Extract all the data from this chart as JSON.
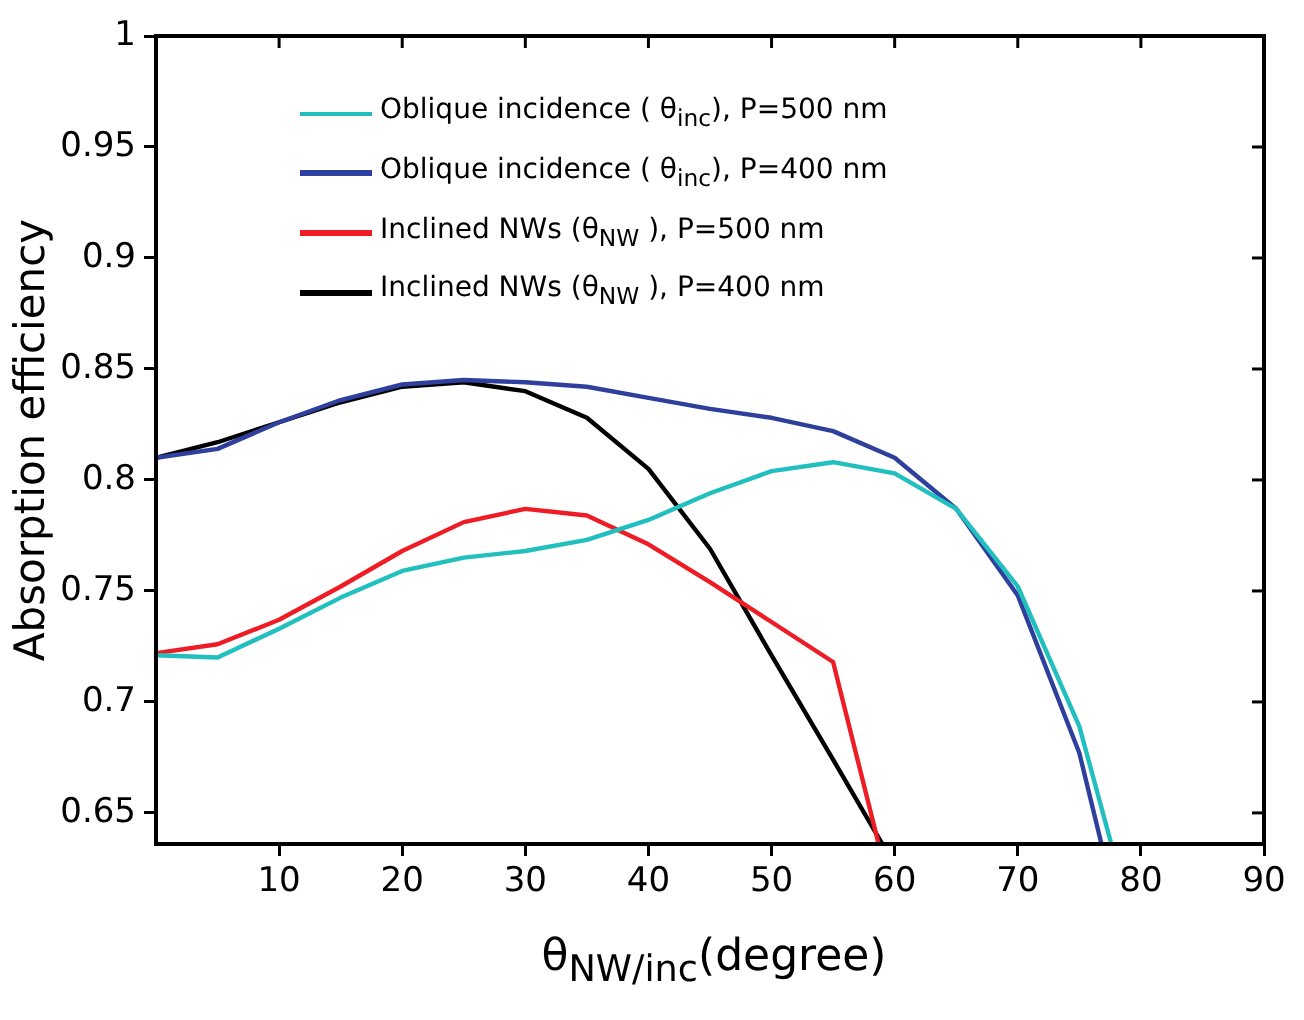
{
  "chart_data": {
    "type": "line",
    "xlabel": "θ$_{NW/inc}$(degree)",
    "ylabel": "Absorption efficiency",
    "xlim": [
      0,
      90
    ],
    "xticks": [
      10,
      20,
      30,
      40,
      50,
      60,
      70,
      80,
      90
    ],
    "ylim": [
      0.636,
      1
    ],
    "yticks": [
      0.65,
      0.7,
      0.75,
      0.8,
      0.85,
      0.9,
      0.95,
      1
    ],
    "grid": false,
    "legend": "top left",
    "marker": "none",
    "line_style": "solid",
    "series": [
      {
        "name": "Oblique incidence ( θ$_{inc}$), P=500 nm",
        "color": "#22bfbf",
        "x": [
          0,
          5,
          10,
          15,
          20,
          25,
          30,
          35,
          40,
          45,
          50,
          55,
          60,
          65,
          70,
          75,
          77.6
        ],
        "values": [
          0.721,
          0.72,
          0.733,
          0.747,
          0.759,
          0.765,
          0.768,
          0.773,
          0.782,
          0.794,
          0.804,
          0.808,
          0.803,
          0.787,
          0.752,
          0.689,
          0.636
        ]
      },
      {
        "name": "Oblique incidence ( θ$_{inc}$), P=400 nm",
        "color": "#2e3f9e",
        "x": [
          0,
          5,
          10,
          15,
          20,
          25,
          30,
          35,
          40,
          45,
          50,
          55,
          60,
          65,
          70,
          75,
          76.8
        ],
        "values": [
          0.81,
          0.814,
          0.826,
          0.836,
          0.843,
          0.845,
          0.844,
          0.842,
          0.837,
          0.832,
          0.828,
          0.822,
          0.81,
          0.787,
          0.748,
          0.677,
          0.636
        ]
      },
      {
        "name": "Inclined NWs (θ$_{NW}$ ), P=500 nm",
        "color": "#ee1c24",
        "x": [
          0,
          5,
          10,
          15,
          20,
          25,
          30,
          35,
          40,
          45,
          50,
          55,
          58.7
        ],
        "values": [
          0.722,
          0.726,
          0.737,
          0.752,
          0.768,
          0.781,
          0.787,
          0.784,
          0.771,
          0.754,
          0.736,
          0.718,
          0.636
        ]
      },
      {
        "name": "Inclined NWs (θ$_{NW}$ ), P=400 nm",
        "color": "#000000",
        "x": [
          0,
          5,
          10,
          15,
          20,
          25,
          30,
          35,
          40,
          45,
          50,
          55,
          59
        ],
        "values": [
          0.81,
          0.817,
          0.826,
          0.835,
          0.842,
          0.844,
          0.84,
          0.828,
          0.805,
          0.769,
          0.721,
          0.674,
          0.636
        ]
      }
    ]
  }
}
